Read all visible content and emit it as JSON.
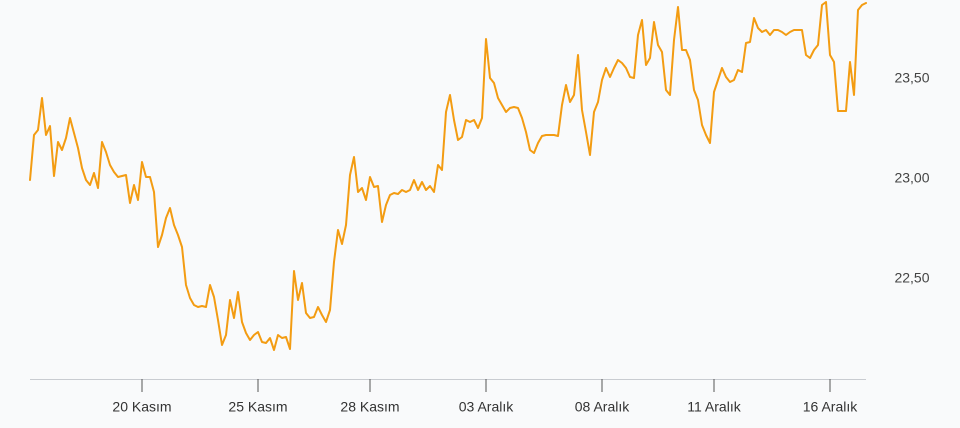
{
  "chart_data": {
    "type": "line",
    "color": "#f39c12",
    "grid": false,
    "xlim": [
      0,
      209
    ],
    "xticks": [
      {
        "value": 28,
        "label": "20 Kasım"
      },
      {
        "value": 57,
        "label": "25 Kasım"
      },
      {
        "value": 85,
        "label": "28 Kasım"
      },
      {
        "value": 114,
        "label": "03 Aralık"
      },
      {
        "value": 143,
        "label": "08 Aralık"
      },
      {
        "value": 171,
        "label": "11 Aralık"
      },
      {
        "value": 200,
        "label": "16 Aralık"
      }
    ],
    "ylim": [
      22,
      23.9
    ],
    "yticks": [
      {
        "value": 22.5,
        "label": "22,50"
      },
      {
        "value": 23,
        "label": "23,00"
      },
      {
        "value": 23.5,
        "label": "23,50"
      }
    ],
    "values": [
      22.995,
      23.22,
      23.245,
      23.405,
      23.22,
      23.265,
      23.015,
      23.185,
      23.145,
      23.205,
      23.305,
      23.23,
      23.155,
      23.055,
      22.995,
      22.97,
      23.03,
      22.955,
      23.185,
      23.135,
      23.07,
      23.035,
      23.01,
      23.015,
      23.02,
      22.88,
      22.97,
      22.895,
      23.085,
      23.01,
      23.01,
      22.935,
      22.66,
      22.72,
      22.805,
      22.855,
      22.77,
      22.72,
      22.66,
      22.47,
      22.405,
      22.37,
      22.36,
      22.365,
      22.36,
      22.47,
      22.41,
      22.295,
      22.17,
      22.22,
      22.395,
      22.305,
      22.435,
      22.285,
      22.23,
      22.195,
      22.22,
      22.235,
      22.185,
      22.18,
      22.205,
      22.145,
      22.22,
      22.205,
      22.21,
      22.15,
      22.54,
      22.395,
      22.48,
      22.33,
      22.305,
      22.31,
      22.36,
      22.32,
      22.285,
      22.345,
      22.585,
      22.745,
      22.675,
      22.77,
      23.02,
      23.11,
      22.935,
      22.955,
      22.895,
      23.01,
      22.96,
      22.965,
      22.785,
      22.87,
      22.92,
      22.93,
      22.925,
      22.945,
      22.935,
      22.945,
      22.995,
      22.945,
      22.985,
      22.945,
      22.965,
      22.935,
      23.07,
      23.045,
      23.335,
      23.42,
      23.295,
      23.195,
      23.21,
      23.295,
      23.285,
      23.295,
      23.255,
      23.305,
      23.7,
      23.505,
      23.48,
      23.405,
      23.37,
      23.335,
      23.355,
      23.36,
      23.355,
      23.305,
      23.235,
      23.145,
      23.13,
      23.18,
      23.215,
      23.22,
      23.22,
      23.22,
      23.215,
      23.37,
      23.47,
      23.385,
      23.42,
      23.62,
      23.345,
      23.235,
      23.12,
      23.335,
      23.385,
      23.495,
      23.555,
      23.51,
      23.555,
      23.595,
      23.58,
      23.555,
      23.51,
      23.505,
      23.72,
      23.795,
      23.57,
      23.605,
      23.785,
      23.67,
      23.635,
      23.445,
      23.42,
      23.695,
      23.86,
      23.645,
      23.645,
      23.595,
      23.445,
      23.395,
      23.27,
      23.22,
      23.18,
      23.435,
      23.495,
      23.555,
      23.51,
      23.485,
      23.495,
      23.545,
      23.535,
      23.68,
      23.685,
      23.805,
      23.755,
      23.735,
      23.745,
      23.72,
      23.745,
      23.745,
      23.735,
      23.72,
      23.735,
      23.745,
      23.745,
      23.745,
      23.62,
      23.605,
      23.645,
      23.67,
      23.87,
      23.885,
      23.62,
      23.585,
      23.34,
      23.34,
      23.34,
      23.585,
      23.42,
      23.845,
      23.87,
      23.88
    ]
  }
}
